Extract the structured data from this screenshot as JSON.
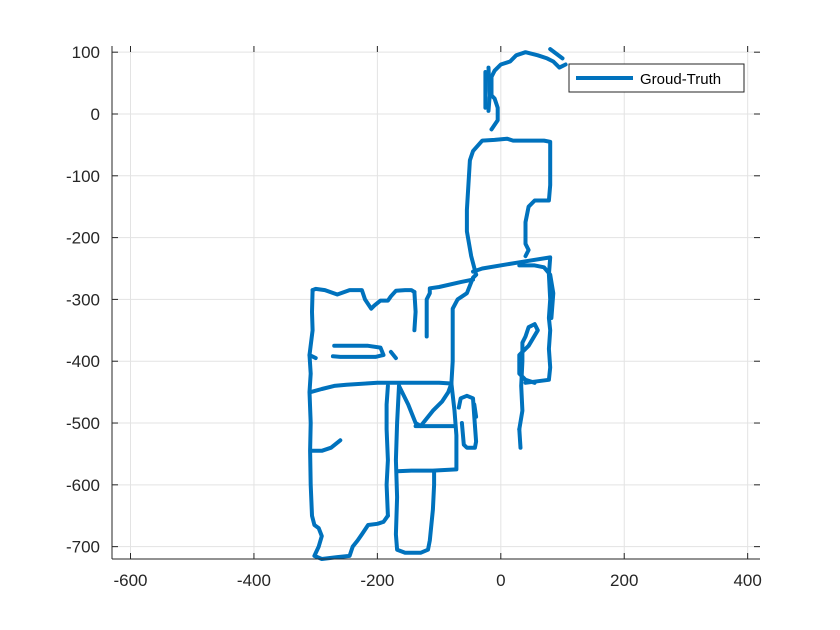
{
  "chart_data": {
    "type": "line",
    "title": "",
    "xlabel": "",
    "ylabel": "",
    "xlim": [
      -630,
      420
    ],
    "ylim": [
      -720,
      110
    ],
    "xticks": [
      -600,
      -400,
      -200,
      0,
      200,
      400
    ],
    "yticks": [
      100,
      0,
      -100,
      -200,
      -300,
      -400,
      -500,
      -600,
      -700
    ],
    "grid": true,
    "legend_position": "top-right",
    "series": [
      {
        "name": "Groud-Truth",
        "color": "#0072BD",
        "segments": [
          [
            [
              -305,
              -285
            ],
            [
              -300,
              -283
            ],
            [
              -285,
              -285
            ],
            [
              -265,
              -292
            ],
            [
              -245,
              -285
            ],
            [
              -225,
              -285
            ],
            [
              -220,
              -300
            ],
            [
              -210,
              -315
            ],
            [
              -205,
              -310
            ],
            [
              -195,
              -302
            ],
            [
              -183,
              -302
            ],
            [
              -178,
              -295
            ],
            [
              -170,
              -286
            ],
            [
              -155,
              -285
            ],
            [
              -145,
              -285
            ],
            [
              -140,
              -288
            ]
          ],
          [
            [
              -305,
              -285
            ],
            [
              -306,
              -320
            ],
            [
              -305,
              -350
            ],
            [
              -310,
              -390
            ],
            [
              -308,
              -420
            ],
            [
              -310,
              -450
            ],
            [
              -308,
              -500
            ],
            [
              -309,
              -545
            ],
            [
              -308,
              -600
            ],
            [
              -306,
              -650
            ],
            [
              -302,
              -665
            ],
            [
              -295,
              -670
            ],
            [
              -290,
              -683
            ],
            [
              -295,
              -700
            ],
            [
              -302,
              -715
            ],
            [
              -290,
              -720
            ],
            [
              -265,
              -717
            ],
            [
              -245,
              -715
            ],
            [
              -240,
              -700
            ],
            [
              -232,
              -690
            ],
            [
              -225,
              -680
            ],
            [
              -215,
              -665
            ],
            [
              -200,
              -663
            ],
            [
              -190,
              -660
            ],
            [
              -183,
              -650
            ]
          ],
          [
            [
              -140,
              -288
            ],
            [
              -138,
              -320
            ],
            [
              -140,
              -350
            ]
          ],
          [
            [
              -310,
              -390
            ],
            [
              -300,
              -395
            ]
          ],
          [
            [
              -308,
              -450
            ],
            [
              -290,
              -445
            ],
            [
              -270,
              -440
            ],
            [
              -250,
              -438
            ],
            [
              -200,
              -435
            ],
            [
              -170,
              -435
            ],
            [
              -100,
              -435
            ],
            [
              -80,
              -436
            ]
          ],
          [
            [
              -308,
              -545
            ],
            [
              -290,
              -545
            ],
            [
              -275,
              -540
            ],
            [
              -260,
              -528
            ]
          ],
          [
            [
              -270,
              -375
            ],
            [
              -240,
              -375
            ],
            [
              -215,
              -375
            ],
            [
              -195,
              -378
            ],
            [
              -190,
              -390
            ],
            [
              -203,
              -393
            ],
            [
              -230,
              -393
            ],
            [
              -260,
              -393
            ],
            [
              -272,
              -392
            ]
          ],
          [
            [
              -183,
              -650
            ],
            [
              -185,
              -600
            ],
            [
              -183,
              -560
            ],
            [
              -185,
              -510
            ],
            [
              -185,
              -470
            ],
            [
              -183,
              -440
            ]
          ],
          [
            [
              -178,
              -385
            ],
            [
              -170,
              -395
            ]
          ],
          [
            [
              -165,
              -440
            ],
            [
              -150,
              -470
            ],
            [
              -138,
              -500
            ],
            [
              -130,
              -505
            ],
            [
              -110,
              -480
            ],
            [
              -95,
              -465
            ],
            [
              -85,
              -450
            ],
            [
              -80,
              -436
            ]
          ],
          [
            [
              -165,
              -440
            ],
            [
              -168,
              -500
            ],
            [
              -170,
              -560
            ],
            [
              -168,
              -620
            ],
            [
              -170,
              -680
            ],
            [
              -168,
              -705
            ],
            [
              -155,
              -710
            ],
            [
              -130,
              -710
            ],
            [
              -118,
              -705
            ],
            [
              -115,
              -690
            ],
            [
              -110,
              -640
            ],
            [
              -108,
              -600
            ],
            [
              -108,
              -580
            ]
          ],
          [
            [
              -168,
              -578
            ],
            [
              -145,
              -577
            ],
            [
              -110,
              -577
            ],
            [
              -72,
              -575
            ],
            [
              -72,
              -520
            ],
            [
              -75,
              -480
            ],
            [
              -80,
              -436
            ]
          ],
          [
            [
              -138,
              -505
            ],
            [
              -110,
              -505
            ],
            [
              -75,
              -505
            ]
          ],
          [
            [
              -80,
              -436
            ],
            [
              -78,
              -400
            ],
            [
              -78,
              -350
            ],
            [
              -78,
              -315
            ],
            [
              -70,
              -300
            ],
            [
              -55,
              -290
            ],
            [
              -45,
              -265
            ],
            [
              -40,
              -260
            ]
          ],
          [
            [
              -120,
              -360
            ],
            [
              -120,
              -300
            ],
            [
              -115,
              -290
            ],
            [
              -115,
              -282
            ],
            [
              -100,
              -280
            ],
            [
              -65,
              -272
            ],
            [
              -45,
              -268
            ]
          ],
          [
            [
              -68,
              -475
            ],
            [
              -65,
              -460
            ],
            [
              -55,
              -456
            ],
            [
              -45,
              -460
            ],
            [
              -43,
              -490
            ],
            [
              -40,
              -530
            ],
            [
              -42,
              -540
            ],
            [
              -55,
              -540
            ],
            [
              -60,
              -535
            ],
            [
              -63,
              -500
            ]
          ],
          [
            [
              -43,
              -470
            ],
            [
              -40,
              -490
            ]
          ],
          [
            [
              -45,
              -265
            ],
            [
              -40,
              -260
            ],
            [
              -48,
              -230
            ],
            [
              -55,
              -190
            ],
            [
              -55,
              -155
            ],
            [
              -50,
              -75
            ],
            [
              -45,
              -60
            ],
            [
              -30,
              -43
            ],
            [
              -10,
              -42
            ],
            [
              10,
              -40
            ],
            [
              20,
              -43
            ],
            [
              50,
              -43
            ],
            [
              70,
              -43
            ],
            [
              80,
              -45
            ],
            [
              80,
              -80
            ],
            [
              80,
              -115
            ],
            [
              78,
              -140
            ],
            [
              55,
              -140
            ],
            [
              45,
              -150
            ],
            [
              40,
              -175
            ],
            [
              40,
              -210
            ],
            [
              45,
              -220
            ],
            [
              40,
              -230
            ]
          ],
          [
            [
              -45,
              -255
            ],
            [
              -30,
              -250
            ],
            [
              30,
              -240
            ],
            [
              80,
              -232
            ],
            [
              78,
              -260
            ],
            [
              80,
              -300
            ],
            [
              78,
              -330
            ],
            [
              80,
              -350
            ],
            [
              78,
              -380
            ],
            [
              80,
              -410
            ],
            [
              78,
              -430
            ],
            [
              40,
              -435
            ]
          ],
          [
            [
              30,
              -245
            ],
            [
              55,
              -245
            ],
            [
              70,
              -248
            ],
            [
              80,
              -260
            ],
            [
              85,
              -290
            ],
            [
              82,
              -330
            ]
          ],
          [
            [
              30,
              -510
            ],
            [
              35,
              -480
            ],
            [
              33,
              -440
            ],
            [
              35,
              -400
            ],
            [
              35,
              -370
            ],
            [
              40,
              -360
            ],
            [
              45,
              -345
            ],
            [
              55,
              -340
            ],
            [
              60,
              -350
            ],
            [
              45,
              -375
            ],
            [
              35,
              -385
            ],
            [
              30,
              -390
            ],
            [
              30,
              -420
            ],
            [
              40,
              -430
            ],
            [
              55,
              -435
            ]
          ],
          [
            [
              -15,
              -25
            ],
            [
              -5,
              -10
            ],
            [
              -5,
              10
            ],
            [
              -10,
              25
            ],
            [
              -15,
              30
            ],
            [
              -15,
              60
            ],
            [
              -10,
              70
            ],
            [
              0,
              80
            ],
            [
              15,
              85
            ],
            [
              25,
              95
            ],
            [
              40,
              100
            ],
            [
              60,
              95
            ],
            [
              75,
              90
            ],
            [
              85,
              85
            ],
            [
              95,
              75
            ],
            [
              105,
              80
            ]
          ],
          [
            [
              -20,
              75
            ],
            [
              -18,
              30
            ],
            [
              -20,
              5
            ]
          ],
          [
            [
              -25,
              68
            ],
            [
              -25,
              10
            ]
          ],
          [
            [
              80,
              105
            ],
            [
              100,
              90
            ]
          ],
          [
            [
              30,
              -510
            ],
            [
              32,
              -540
            ]
          ]
        ]
      }
    ]
  }
}
